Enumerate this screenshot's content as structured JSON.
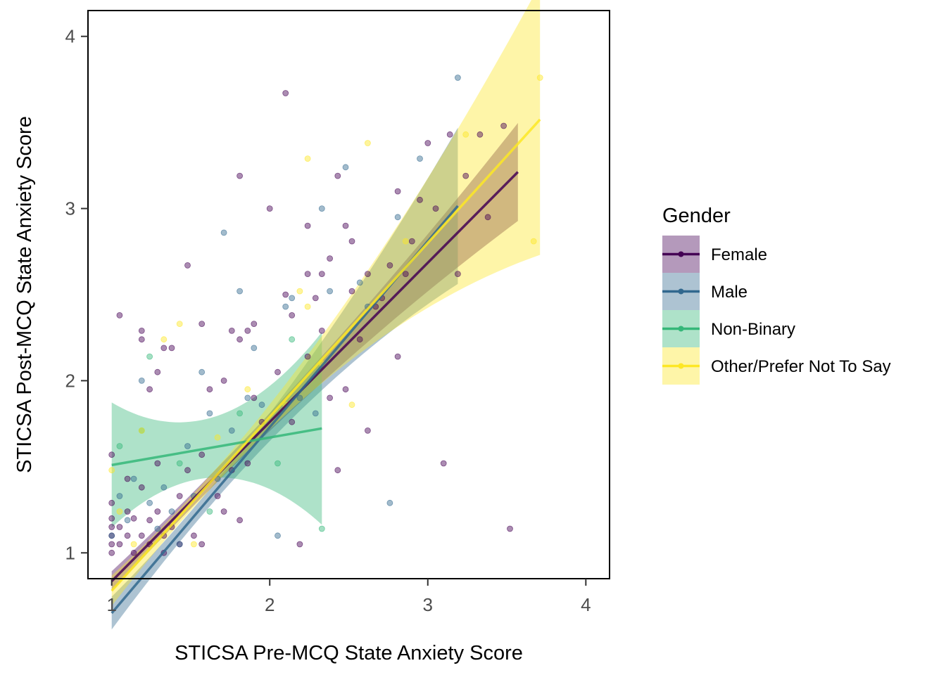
{
  "chart_data": {
    "type": "scatter",
    "title": "",
    "xlabel": "STICSA Pre-MCQ State Anxiety Score",
    "ylabel": "STICSA Post-MCQ State Anxiety Score",
    "xlim": [
      0.85,
      4.15
    ],
    "ylim": [
      0.85,
      4.15
    ],
    "x_ticks": [
      "1",
      "2",
      "3",
      "4"
    ],
    "y_ticks": [
      "1",
      "2",
      "3",
      "4"
    ],
    "grid": false,
    "legend": {
      "title": "Gender",
      "position": "right",
      "entries": [
        "Female",
        "Male",
        "Non-Binary",
        "Other/Prefer Not To Say"
      ]
    },
    "series": [
      {
        "name": "Female",
        "color": "#440154",
        "fit": {
          "x_range": [
            1.0,
            3.57
          ],
          "intercept": -0.09,
          "slope": 0.925,
          "se0": 0.04,
          "se_k": 0.06
        },
        "points": [
          [
            1.0,
            1.0
          ],
          [
            1.0,
            1.05
          ],
          [
            1.0,
            1.1
          ],
          [
            1.0,
            1.15
          ],
          [
            1.0,
            1.2
          ],
          [
            1.0,
            1.29
          ],
          [
            1.0,
            1.57
          ],
          [
            1.05,
            1.05
          ],
          [
            1.05,
            1.15
          ],
          [
            1.05,
            2.38
          ],
          [
            1.1,
            1.1
          ],
          [
            1.1,
            1.24
          ],
          [
            1.1,
            1.43
          ],
          [
            1.14,
            1.0
          ],
          [
            1.14,
            1.2
          ],
          [
            1.19,
            1.1
          ],
          [
            1.19,
            1.38
          ],
          [
            1.19,
            2.24
          ],
          [
            1.19,
            2.29
          ],
          [
            1.24,
            1.05
          ],
          [
            1.24,
            1.19
          ],
          [
            1.24,
            1.95
          ],
          [
            1.29,
            1.24
          ],
          [
            1.29,
            1.52
          ],
          [
            1.29,
            2.05
          ],
          [
            1.33,
            1.0
          ],
          [
            1.33,
            2.19
          ],
          [
            1.33,
            1.1
          ],
          [
            1.38,
            1.15
          ],
          [
            1.38,
            2.19
          ],
          [
            1.43,
            1.33
          ],
          [
            1.43,
            1.05
          ],
          [
            1.48,
            1.48
          ],
          [
            1.48,
            2.67
          ],
          [
            1.52,
            1.1
          ],
          [
            1.57,
            1.05
          ],
          [
            1.57,
            1.57
          ],
          [
            1.57,
            2.33
          ],
          [
            1.62,
            1.95
          ],
          [
            1.67,
            1.33
          ],
          [
            1.71,
            1.24
          ],
          [
            1.71,
            2.0
          ],
          [
            1.76,
            1.48
          ],
          [
            1.76,
            2.29
          ],
          [
            1.81,
            2.24
          ],
          [
            1.81,
            1.19
          ],
          [
            1.81,
            3.19
          ],
          [
            1.86,
            2.29
          ],
          [
            1.86,
            1.52
          ],
          [
            1.9,
            1.9
          ],
          [
            1.9,
            2.33
          ],
          [
            1.95,
            1.76
          ],
          [
            2.0,
            3.0
          ],
          [
            2.05,
            2.05
          ],
          [
            2.1,
            2.5
          ],
          [
            2.1,
            3.67
          ],
          [
            2.14,
            2.38
          ],
          [
            2.14,
            1.76
          ],
          [
            2.19,
            1.05
          ],
          [
            2.24,
            2.62
          ],
          [
            2.24,
            2.9
          ],
          [
            2.24,
            2.14
          ],
          [
            2.29,
            2.48
          ],
          [
            2.33,
            2.62
          ],
          [
            2.33,
            2.29
          ],
          [
            2.38,
            2.71
          ],
          [
            2.38,
            1.9
          ],
          [
            2.43,
            1.48
          ],
          [
            2.43,
            3.19
          ],
          [
            2.48,
            2.9
          ],
          [
            2.48,
            1.95
          ],
          [
            2.52,
            2.52
          ],
          [
            2.52,
            2.81
          ],
          [
            2.57,
            2.24
          ],
          [
            2.62,
            1.71
          ],
          [
            2.62,
            2.62
          ],
          [
            2.67,
            2.43
          ],
          [
            2.71,
            2.48
          ],
          [
            2.76,
            2.67
          ],
          [
            2.81,
            3.1
          ],
          [
            2.81,
            2.14
          ],
          [
            2.86,
            2.62
          ],
          [
            2.9,
            2.81
          ],
          [
            2.95,
            3.05
          ],
          [
            3.0,
            3.38
          ],
          [
            3.05,
            3.0
          ],
          [
            3.1,
            1.52
          ],
          [
            3.14,
            3.43
          ],
          [
            3.19,
            2.62
          ],
          [
            3.24,
            3.19
          ],
          [
            3.33,
            3.43
          ],
          [
            3.38,
            2.95
          ],
          [
            3.48,
            3.48
          ],
          [
            3.52,
            1.14
          ]
        ]
      },
      {
        "name": "Male",
        "color": "#31688e",
        "fit": {
          "x_range": [
            1.0,
            3.19
          ],
          "intercept": -0.43,
          "slope": 1.08,
          "se0": 0.05,
          "se_k": 0.15
        },
        "points": [
          [
            1.0,
            1.1
          ],
          [
            1.05,
            1.33
          ],
          [
            1.1,
            1.19
          ],
          [
            1.14,
            1.43
          ],
          [
            1.19,
            2.0
          ],
          [
            1.24,
            1.29
          ],
          [
            1.29,
            1.14
          ],
          [
            1.33,
            1.38
          ],
          [
            1.38,
            1.24
          ],
          [
            1.43,
            1.05
          ],
          [
            1.48,
            1.62
          ],
          [
            1.52,
            1.33
          ],
          [
            1.57,
            2.05
          ],
          [
            1.62,
            1.81
          ],
          [
            1.67,
            1.43
          ],
          [
            1.71,
            2.86
          ],
          [
            1.76,
            1.71
          ],
          [
            1.81,
            2.52
          ],
          [
            1.86,
            1.9
          ],
          [
            1.9,
            2.19
          ],
          [
            1.95,
            1.86
          ],
          [
            2.05,
            1.1
          ],
          [
            2.1,
            2.43
          ],
          [
            2.14,
            2.48
          ],
          [
            2.19,
            1.9
          ],
          [
            2.29,
            1.81
          ],
          [
            2.33,
            3.0
          ],
          [
            2.38,
            2.52
          ],
          [
            2.48,
            3.24
          ],
          [
            2.57,
            2.57
          ],
          [
            2.62,
            2.43
          ],
          [
            2.76,
            1.29
          ],
          [
            2.81,
            2.95
          ],
          [
            2.95,
            3.29
          ],
          [
            3.19,
            3.76
          ]
        ]
      },
      {
        "name": "Non-Binary",
        "color": "#35b779",
        "fit": {
          "x_range": [
            1.0,
            2.33
          ],
          "intercept": 1.35,
          "slope": 0.16,
          "se0": 0.17,
          "se_k": 0.64
        },
        "points": [
          [
            1.05,
            1.62
          ],
          [
            1.19,
            1.71
          ],
          [
            1.24,
            2.14
          ],
          [
            1.43,
            1.52
          ],
          [
            1.62,
            1.24
          ],
          [
            1.81,
            1.81
          ],
          [
            2.05,
            1.52
          ],
          [
            2.14,
            2.24
          ],
          [
            2.33,
            1.14
          ]
        ]
      },
      {
        "name": "Other/Prefer Not To Say",
        "color": "#fde725",
        "fit": {
          "x_range": [
            1.0,
            3.71
          ],
          "intercept": -0.23,
          "slope": 1.01,
          "se0": 0.04,
          "se_k": 0.16
        },
        "points": [
          [
            1.0,
            1.48
          ],
          [
            1.05,
            1.24
          ],
          [
            1.14,
            1.05
          ],
          [
            1.19,
            1.71
          ],
          [
            1.33,
            2.24
          ],
          [
            1.43,
            2.33
          ],
          [
            1.52,
            1.05
          ],
          [
            1.67,
            1.67
          ],
          [
            1.86,
            1.95
          ],
          [
            2.1,
            1.86
          ],
          [
            2.19,
            2.52
          ],
          [
            2.24,
            3.29
          ],
          [
            2.24,
            2.43
          ],
          [
            2.33,
            2.1
          ],
          [
            2.52,
            1.86
          ],
          [
            2.62,
            3.38
          ],
          [
            2.86,
            2.81
          ],
          [
            3.24,
            3.43
          ],
          [
            3.67,
            2.81
          ],
          [
            3.71,
            3.76
          ]
        ]
      }
    ]
  }
}
